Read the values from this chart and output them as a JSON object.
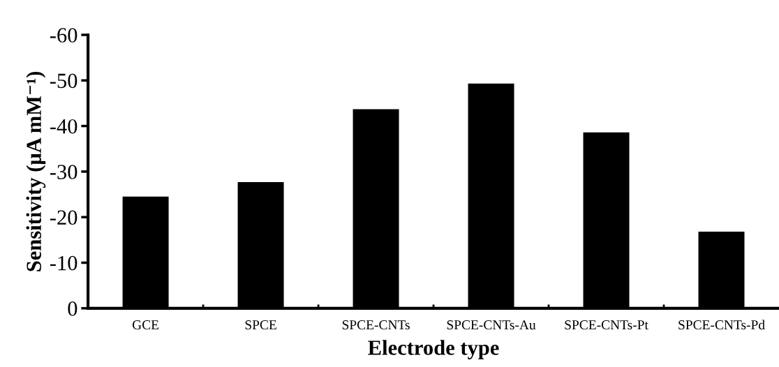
{
  "chart_data": {
    "type": "bar",
    "xlabel": "Electrode type",
    "ylabel": "Sensitivity (μA mM⁻¹)",
    "categories": [
      "GCE",
      "SPCE",
      "SPCE-CNTs",
      "SPCE-CNTs-Au",
      "SPCE-CNTs-Pt",
      "SPCE-CNTs-Pd"
    ],
    "values": [
      -24.5,
      -27.7,
      -43.7,
      -49.3,
      -38.6,
      -16.8
    ],
    "color": "#000000",
    "ylim": [
      0,
      -60
    ],
    "yticks": [
      {
        "value": 0,
        "label": "0"
      },
      {
        "value": -10,
        "label": "-10"
      },
      {
        "value": -20,
        "label": "-20"
      },
      {
        "value": -30,
        "label": "-30"
      },
      {
        "value": -40,
        "label": "-40"
      },
      {
        "value": -50,
        "label": "-50"
      },
      {
        "value": -60,
        "label": "-60"
      }
    ],
    "grid": false
  }
}
